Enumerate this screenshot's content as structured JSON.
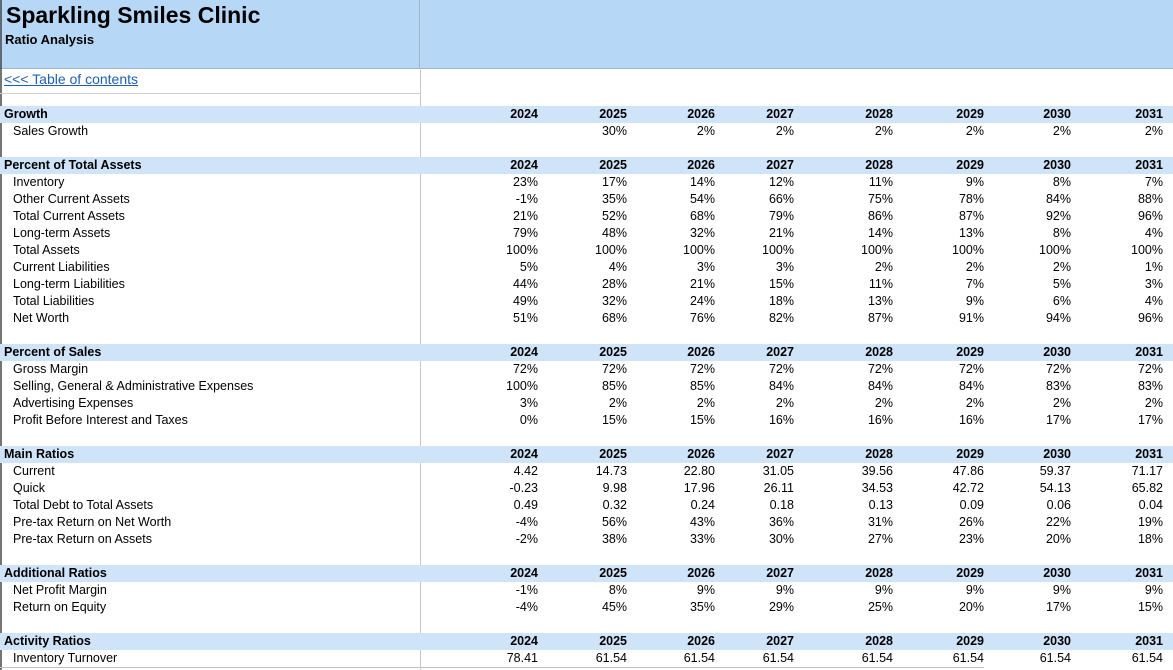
{
  "header": {
    "title": "Sparkling Smiles Clinic",
    "subtitle": "Ratio Analysis"
  },
  "toc_link": "<<< Table of contents",
  "sections": [
    {
      "title": "Growth",
      "years": [
        "2024",
        "2025",
        "2026",
        "2027",
        "2028",
        "2029",
        "2030",
        "2031"
      ],
      "rows": [
        {
          "label": "Sales Growth",
          "values": [
            "",
            "30%",
            "2%",
            "2%",
            "2%",
            "2%",
            "2%",
            "2%"
          ]
        }
      ]
    },
    {
      "title": "Percent of Total Assets",
      "years": [
        "2024",
        "2025",
        "2026",
        "2027",
        "2028",
        "2029",
        "2030",
        "2031"
      ],
      "rows": [
        {
          "label": "Inventory",
          "values": [
            "23%",
            "17%",
            "14%",
            "12%",
            "11%",
            "9%",
            "8%",
            "7%"
          ]
        },
        {
          "label": "Other Current Assets",
          "values": [
            "-1%",
            "35%",
            "54%",
            "66%",
            "75%",
            "78%",
            "84%",
            "88%"
          ]
        },
        {
          "label": "Total Current Assets",
          "values": [
            "21%",
            "52%",
            "68%",
            "79%",
            "86%",
            "87%",
            "92%",
            "96%"
          ]
        },
        {
          "label": "Long-term Assets",
          "values": [
            "79%",
            "48%",
            "32%",
            "21%",
            "14%",
            "13%",
            "8%",
            "4%"
          ]
        },
        {
          "label": "Total Assets",
          "values": [
            "100%",
            "100%",
            "100%",
            "100%",
            "100%",
            "100%",
            "100%",
            "100%"
          ]
        },
        {
          "label": "Current Liabilities",
          "values": [
            "5%",
            "4%",
            "3%",
            "3%",
            "2%",
            "2%",
            "2%",
            "1%"
          ]
        },
        {
          "label": "Long-term Liabilities",
          "values": [
            "44%",
            "28%",
            "21%",
            "15%",
            "11%",
            "7%",
            "5%",
            "3%"
          ]
        },
        {
          "label": "Total Liabilities",
          "values": [
            "49%",
            "32%",
            "24%",
            "18%",
            "13%",
            "9%",
            "6%",
            "4%"
          ]
        },
        {
          "label": "Net Worth",
          "values": [
            "51%",
            "68%",
            "76%",
            "82%",
            "87%",
            "91%",
            "94%",
            "96%"
          ]
        }
      ]
    },
    {
      "title": "Percent of Sales",
      "years": [
        "2024",
        "2025",
        "2026",
        "2027",
        "2028",
        "2029",
        "2030",
        "2031"
      ],
      "rows": [
        {
          "label": "Gross Margin",
          "values": [
            "72%",
            "72%",
            "72%",
            "72%",
            "72%",
            "72%",
            "72%",
            "72%"
          ]
        },
        {
          "label": "Selling, General & Administrative Expenses",
          "values": [
            "100%",
            "85%",
            "85%",
            "84%",
            "84%",
            "84%",
            "83%",
            "83%"
          ]
        },
        {
          "label": "Advertising Expenses",
          "values": [
            "3%",
            "2%",
            "2%",
            "2%",
            "2%",
            "2%",
            "2%",
            "2%"
          ]
        },
        {
          "label": "Profit Before Interest and Taxes",
          "values": [
            "0%",
            "15%",
            "15%",
            "16%",
            "16%",
            "16%",
            "17%",
            "17%"
          ]
        }
      ]
    },
    {
      "title": "Main Ratios",
      "years": [
        "2024",
        "2025",
        "2026",
        "2027",
        "2028",
        "2029",
        "2030",
        "2031"
      ],
      "rows": [
        {
          "label": "Current",
          "values": [
            "4.42",
            "14.73",
            "22.80",
            "31.05",
            "39.56",
            "47.86",
            "59.37",
            "71.17"
          ]
        },
        {
          "label": "Quick",
          "values": [
            "-0.23",
            "9.98",
            "17.96",
            "26.11",
            "34.53",
            "42.72",
            "54.13",
            "65.82"
          ]
        },
        {
          "label": "Total Debt to Total Assets",
          "values": [
            "0.49",
            "0.32",
            "0.24",
            "0.18",
            "0.13",
            "0.09",
            "0.06",
            "0.04"
          ]
        },
        {
          "label": "Pre-tax Return on Net Worth",
          "values": [
            "-4%",
            "56%",
            "43%",
            "36%",
            "31%",
            "26%",
            "22%",
            "19%"
          ]
        },
        {
          "label": "Pre-tax Return on Assets",
          "values": [
            "-2%",
            "38%",
            "33%",
            "30%",
            "27%",
            "23%",
            "20%",
            "18%"
          ]
        }
      ]
    },
    {
      "title": "Additional Ratios",
      "years": [
        "2024",
        "2025",
        "2026",
        "2027",
        "2028",
        "2029",
        "2030",
        "2031"
      ],
      "rows": [
        {
          "label": "Net Profit Margin",
          "values": [
            "-1%",
            "8%",
            "9%",
            "9%",
            "9%",
            "9%",
            "9%",
            "9%"
          ]
        },
        {
          "label": "Return on Equity",
          "values": [
            "-4%",
            "45%",
            "35%",
            "29%",
            "25%",
            "20%",
            "17%",
            "15%"
          ]
        }
      ]
    },
    {
      "title": "Activity Ratios",
      "years": [
        "2024",
        "2025",
        "2026",
        "2027",
        "2028",
        "2029",
        "2030",
        "2031"
      ],
      "rows": [
        {
          "label": "Inventory Turnover",
          "values": [
            "78.41",
            "61.54",
            "61.54",
            "61.54",
            "61.54",
            "61.54",
            "61.54",
            "61.54"
          ]
        }
      ]
    }
  ]
}
